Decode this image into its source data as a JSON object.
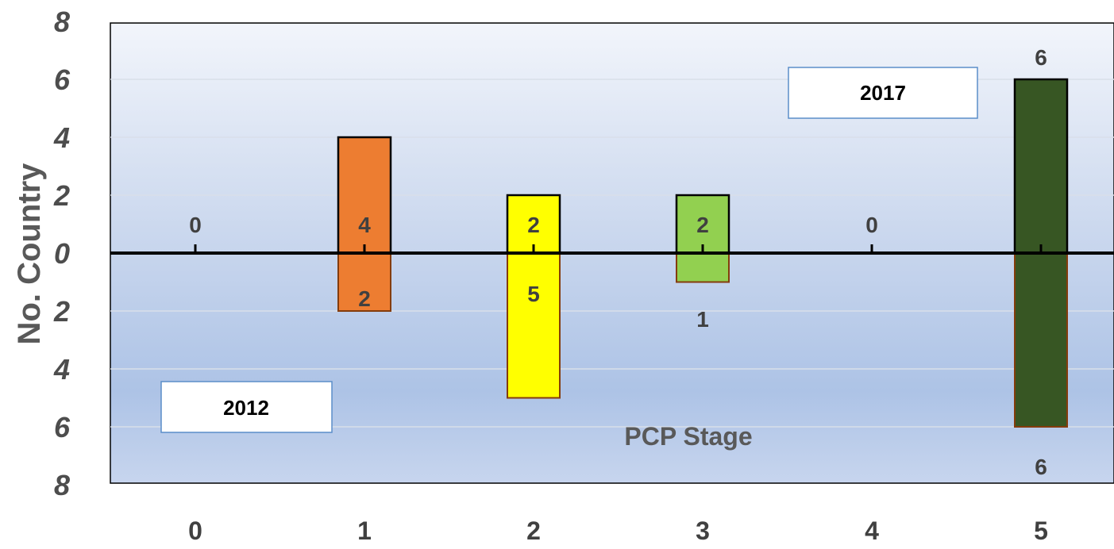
{
  "chart_data": {
    "type": "bar",
    "categories": [
      "0",
      "1",
      "2",
      "3",
      "4",
      "5"
    ],
    "series": [
      {
        "name": "2017",
        "values": [
          0,
          4,
          2,
          2,
          0,
          6
        ]
      },
      {
        "name": "2012",
        "values": [
          0,
          2,
          5,
          1,
          0,
          6
        ]
      }
    ],
    "ylabel": "No. Country",
    "xlabel": "PCP Stage",
    "y_ticks_upper": [
      "8",
      "6",
      "4",
      "2",
      "0"
    ],
    "y_ticks_lower": [
      "2",
      "4",
      "6",
      "8"
    ],
    "ylim": [
      -8,
      8
    ],
    "grid": true,
    "colors": [
      "#ed7d31",
      "#ffff00",
      "#92d050",
      "#375623"
    ],
    "upper_label_box": "2017",
    "lower_label_box": "2012"
  }
}
